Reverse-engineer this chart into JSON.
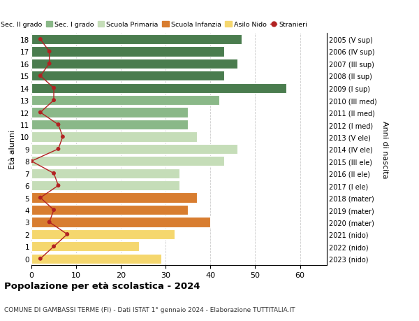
{
  "ages": [
    18,
    17,
    16,
    15,
    14,
    13,
    12,
    11,
    10,
    9,
    8,
    7,
    6,
    5,
    4,
    3,
    2,
    1,
    0
  ],
  "labels_right": [
    "2005 (V sup)",
    "2006 (IV sup)",
    "2007 (III sup)",
    "2008 (II sup)",
    "2009 (I sup)",
    "2010 (III med)",
    "2011 (II med)",
    "2012 (I med)",
    "2013 (V ele)",
    "2014 (IV ele)",
    "2015 (III ele)",
    "2016 (II ele)",
    "2017 (I ele)",
    "2018 (mater)",
    "2019 (mater)",
    "2020 (mater)",
    "2021 (nido)",
    "2022 (nido)",
    "2023 (nido)"
  ],
  "bar_values": [
    47,
    43,
    46,
    43,
    57,
    42,
    35,
    35,
    37,
    46,
    43,
    33,
    33,
    37,
    35,
    40,
    32,
    24,
    29
  ],
  "stranieri": [
    2,
    4,
    4,
    2,
    5,
    5,
    2,
    6,
    7,
    6,
    0,
    5,
    6,
    2,
    5,
    4,
    8,
    5,
    2
  ],
  "bar_colors_by_age": {
    "18": "#4a7c4e",
    "17": "#4a7c4e",
    "16": "#4a7c4e",
    "15": "#4a7c4e",
    "14": "#4a7c4e",
    "13": "#8ab888",
    "12": "#8ab888",
    "11": "#8ab888",
    "10": "#c5ddb8",
    "9": "#c5ddb8",
    "8": "#c5ddb8",
    "7": "#c5ddb8",
    "6": "#c5ddb8",
    "5": "#d87d30",
    "4": "#d87d30",
    "3": "#d87d30",
    "2": "#f5d76e",
    "1": "#f5d76e",
    "0": "#f5d76e"
  },
  "legend_labels": [
    "Sec. II grado",
    "Sec. I grado",
    "Scuola Primaria",
    "Scuola Infanzia",
    "Asilo Nido",
    "Stranieri"
  ],
  "legend_colors": [
    "#4a7c4e",
    "#8ab888",
    "#c5ddb8",
    "#d87d30",
    "#f5d76e",
    "#b22222"
  ],
  "ylabel_left": "Età alunni",
  "ylabel_right": "Anni di nascita",
  "xlim": [
    0,
    66
  ],
  "title": "Popolazione per età scolastica - 2024",
  "subtitle": "COMUNE DI GAMBASSI TERME (FI) - Dati ISTAT 1° gennaio 2024 - Elaborazione TUTTITALIA.IT",
  "stranieri_color": "#b22222",
  "grid_color": "#cccccc",
  "bar_height": 0.82
}
